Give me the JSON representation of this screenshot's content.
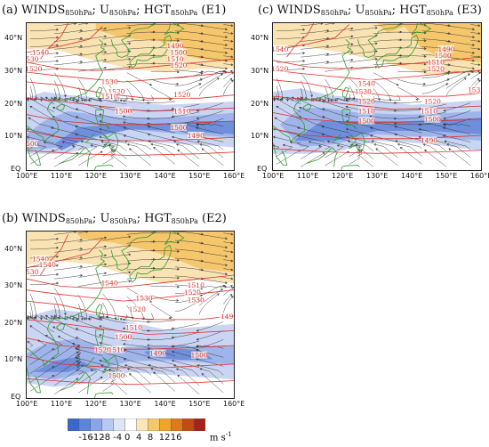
{
  "panels": [
    {
      "id": "E1",
      "title": {
        "prefix": "(a) WINDS",
        "sub1": "850hPa",
        "mid1": "; U",
        "sub2": "850hPa",
        "mid2": "; HGT",
        "sub3": "850hPa",
        "suffix": " (E1)"
      },
      "contours": [
        "1490",
        "1500",
        "1510",
        "1520",
        "1530",
        "1540"
      ],
      "contour_labels": [
        "1540",
        "1530",
        "1520",
        "1530",
        "1520",
        "1510",
        "1500",
        "1520",
        "1510",
        "1500",
        "1490",
        "1490",
        "1500",
        "1510",
        "1520",
        "1500"
      ]
    },
    {
      "id": "E3",
      "title": {
        "prefix": "(c) WINDS",
        "sub1": "850hPa",
        "mid1": "; U",
        "sub2": "850hPa",
        "mid2": "; HGT",
        "sub3": "850hPa",
        "suffix": " (E3)"
      },
      "contours": [
        "1490",
        "1500",
        "1510",
        "1520",
        "1530",
        "1540"
      ],
      "contour_labels": [
        "1540",
        "1520",
        "1540",
        "1530",
        "1520",
        "1510",
        "1500",
        "1520",
        "1510",
        "1500",
        "1490",
        "1490",
        "1500",
        "1510",
        "1520",
        "153"
      ]
    },
    {
      "id": "E2",
      "title": {
        "prefix": "(b) WINDS",
        "sub1": "850hPa",
        "mid1": "; U",
        "sub2": "850hPa",
        "mid2": "; HGT",
        "sub3": "850hPa",
        "suffix": " (E2)"
      },
      "contours": [
        "1490",
        "1500",
        "1510",
        "1520",
        "1530",
        "1540"
      ],
      "contour_labels": [
        "1540",
        "1540",
        "1530",
        "1540",
        "1530",
        "1520",
        "1510",
        "1500",
        "1520",
        "1510",
        "1500",
        "1490",
        "1500",
        "1510",
        "1520",
        "1530",
        "149"
      ]
    }
  ],
  "axes": {
    "x_ticks": [
      "100°E",
      "110°E",
      "120°E",
      "130°E",
      "140°E",
      "150°E",
      "160°E"
    ],
    "y_ticks": [
      "EQ",
      "10°N",
      "20°N",
      "30°N",
      "40°N"
    ]
  },
  "colorbar": {
    "ticks": [
      "-16",
      "-12",
      "-8",
      "-4",
      "0",
      "4",
      "8",
      "12",
      "16"
    ],
    "unit": "m s",
    "unit_sup": "-1",
    "colors": [
      "#3a67cc",
      "#5b84db",
      "#8aa6e8",
      "#b9c8f0",
      "#dde5f7",
      "#ffffff",
      "#fae6b8",
      "#f5c86a",
      "#efa52a",
      "#dc7a1c",
      "#c24a14",
      "#a3221a"
    ]
  },
  "colors": {
    "contour": "#e0302a",
    "coast": "#2f9a2f",
    "stream": "#333333"
  }
}
